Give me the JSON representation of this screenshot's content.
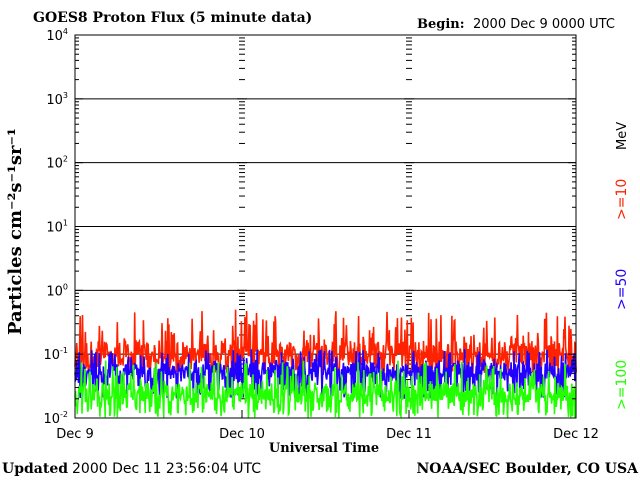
{
  "chart_data": {
    "type": "line",
    "title": "GOES8 Proton Flux (5 minute data)",
    "begin_label": "Begin:",
    "begin_value": "2000 Dec 9 0000 UTC",
    "xlabel": "Universal Time",
    "ylabel": "Particles cm⁻²s⁻¹sr⁻¹",
    "y_scale": "log",
    "ylim": [
      0.01,
      10000
    ],
    "y_ticks": [
      {
        "base": "10",
        "exp": "-2"
      },
      {
        "base": "10",
        "exp": "-1"
      },
      {
        "base": "10",
        "exp": "0"
      },
      {
        "base": "10",
        "exp": "1"
      },
      {
        "base": "10",
        "exp": "2"
      },
      {
        "base": "10",
        "exp": "3"
      },
      {
        "base": "10",
        "exp": "4"
      }
    ],
    "x_ticks": [
      "Dec 9",
      "Dec 10",
      "Dec 11",
      "Dec 12"
    ],
    "xlim": [
      "2000-12-09 00:00",
      "2000-12-12 00:00"
    ],
    "grid": true,
    "legend_position": "right",
    "legend_unit": "MeV",
    "series": [
      {
        "name": ">=10",
        "color": "#ff2200",
        "typical": 0.11,
        "spread": [
          0.05,
          0.5
        ]
      },
      {
        "name": ">=50",
        "color": "#2200ff",
        "typical": 0.055,
        "spread": [
          0.02,
          0.12
        ]
      },
      {
        "name": ">=100",
        "color": "#22ff00",
        "typical": 0.025,
        "spread": [
          0.01,
          0.08
        ]
      }
    ]
  },
  "footer": {
    "updated_label": "Updated",
    "updated_value": "2000 Dec 11 23:56:04 UTC",
    "credit": "NOAA/SEC Boulder, CO USA"
  }
}
